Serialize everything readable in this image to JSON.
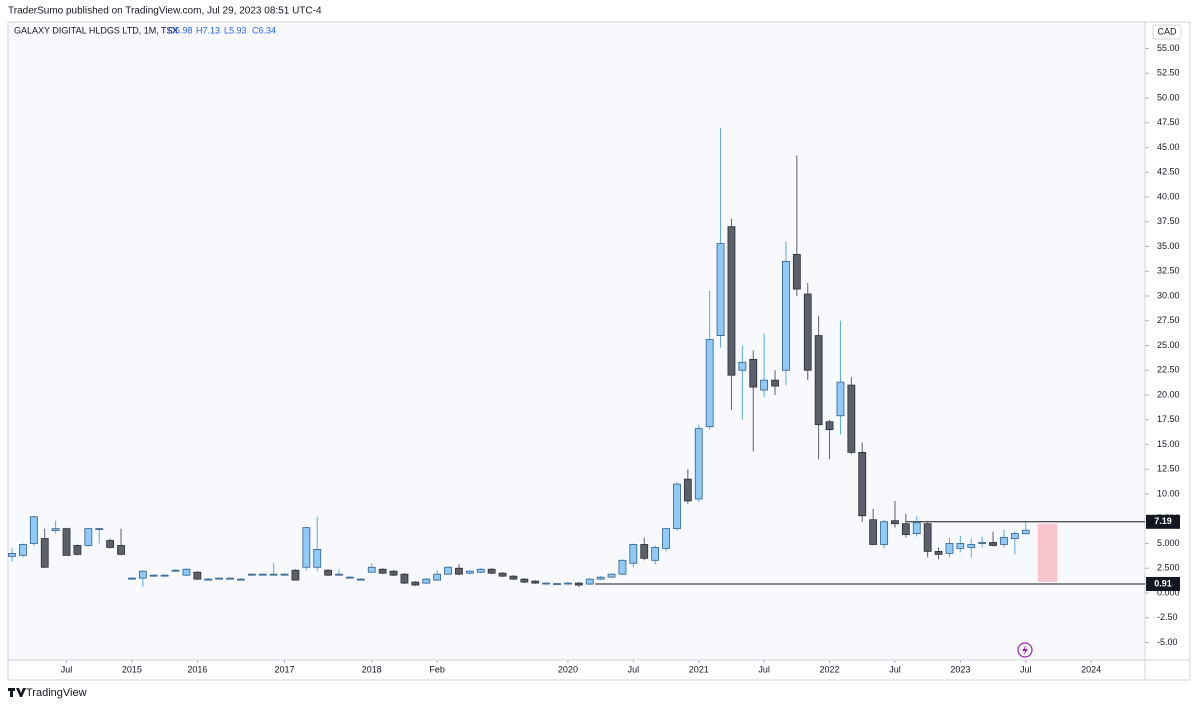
{
  "header": {
    "publisher": "TraderSumo published on TradingView.com, Jul 29, 2023 08:51 UTC-4"
  },
  "footer": {
    "brand": "TradingView"
  },
  "chart_data": {
    "type": "candlestick",
    "legend": {
      "symbol": "GALAXY DIGITAL HLDGS LTD, 1M, TSX",
      "ohlc": [
        "O5.98",
        "H7.13",
        "L5.93",
        "C6.34"
      ]
    },
    "currency": "CAD",
    "open": [
      3.7,
      3.8,
      5.0,
      5.5,
      6.3,
      6.5,
      4.8,
      4.8,
      6.4,
      5.3,
      4.8,
      1.5,
      1.5,
      1.8,
      1.8,
      2.3,
      1.8,
      2.1,
      1.4,
      1.5,
      1.5,
      1.4,
      1.9,
      1.9,
      1.9,
      1.9,
      2.3,
      2.6,
      2.6,
      2.3,
      1.9,
      1.6,
      1.4,
      2.1,
      2.4,
      2.2,
      1.9,
      1.1,
      1.0,
      1.3,
      1.9,
      2.5,
      2.0,
      2.1,
      2.4,
      2.0,
      1.7,
      1.4,
      1.2,
      1.0,
      0.95,
      1.0,
      1.0,
      0.9,
      1.4,
      1.6,
      1.9,
      3.0,
      4.9,
      3.3,
      4.5,
      6.5,
      11.5,
      9.5,
      16.8,
      26.0,
      37.0,
      22.5,
      23.6,
      20.5,
      21.5,
      22.5,
      34.2,
      30.2,
      26.0,
      17.3,
      17.9,
      21.0,
      14.2,
      7.4,
      4.9,
      7.3,
      7.0,
      6.0,
      7.0,
      4.2,
      4.0,
      4.5,
      4.6,
      5.0,
      5.1,
      4.9,
      5.5,
      5.98
    ],
    "high": [
      4.5,
      5.0,
      7.8,
      6.5,
      7.3,
      6.6,
      4.9,
      6.6,
      6.6,
      5.5,
      6.5,
      1.6,
      2.3,
      1.9,
      1.9,
      2.4,
      2.5,
      2.2,
      1.5,
      1.6,
      1.6,
      1.5,
      2.0,
      2.0,
      3.0,
      2.0,
      2.4,
      6.7,
      7.7,
      2.4,
      2.4,
      1.7,
      1.5,
      3.0,
      2.5,
      2.3,
      2.0,
      1.2,
      1.5,
      2.3,
      2.7,
      2.9,
      2.3,
      2.5,
      2.5,
      2.1,
      1.8,
      1.5,
      1.3,
      1.1,
      1.0,
      1.1,
      1.1,
      1.5,
      1.7,
      2.0,
      3.4,
      5.0,
      5.6,
      4.8,
      6.6,
      11.2,
      12.5,
      17.0,
      30.5,
      47.0,
      37.8,
      25.0,
      24.5,
      26.2,
      22.5,
      35.5,
      44.2,
      31.3,
      28.0,
      17.5,
      27.5,
      21.8,
      15.2,
      8.5,
      7.4,
      9.3,
      8.0,
      7.8,
      7.3,
      4.6,
      5.6,
      5.8,
      5.5,
      5.7,
      6.2,
      6.4,
      6.2,
      7.13
    ],
    "low": [
      3.2,
      3.6,
      4.8,
      2.5,
      6.0,
      3.8,
      3.8,
      4.7,
      5.0,
      4.5,
      3.8,
      1.4,
      0.6,
      1.7,
      1.7,
      2.2,
      1.7,
      1.3,
      1.3,
      1.4,
      1.4,
      1.3,
      1.8,
      1.8,
      1.8,
      1.8,
      1.3,
      2.3,
      2.2,
      1.7,
      1.8,
      1.5,
      1.3,
      2.0,
      1.9,
      1.7,
      0.9,
      0.7,
      0.9,
      1.2,
      1.8,
      1.8,
      1.9,
      2.0,
      1.9,
      1.6,
      1.3,
      1.0,
      0.9,
      0.9,
      0.9,
      0.9,
      0.6,
      0.8,
      1.3,
      1.5,
      1.8,
      2.6,
      3.3,
      2.9,
      4.2,
      6.3,
      9.0,
      9.2,
      16.5,
      24.8,
      18.5,
      17.5,
      14.3,
      19.8,
      20.0,
      21.0,
      30.0,
      21.5,
      13.5,
      13.5,
      16.0,
      14.0,
      7.2,
      4.8,
      4.5,
      6.6,
      5.6,
      5.7,
      3.6,
      3.4,
      3.6,
      4.1,
      3.6,
      4.6,
      4.7,
      4.6,
      3.9,
      5.93
    ],
    "close": [
      4.0,
      4.9,
      7.7,
      2.6,
      6.5,
      3.8,
      3.9,
      6.5,
      6.5,
      4.6,
      3.9,
      1.5,
      2.2,
      1.8,
      1.8,
      2.3,
      2.4,
      1.4,
      1.4,
      1.5,
      1.5,
      1.4,
      1.9,
      1.9,
      1.9,
      1.9,
      1.3,
      6.6,
      4.4,
      1.8,
      1.9,
      1.6,
      1.4,
      2.6,
      2.0,
      1.8,
      1.0,
      0.8,
      1.4,
      1.9,
      2.6,
      1.9,
      2.2,
      2.4,
      2.0,
      1.7,
      1.4,
      1.1,
      1.0,
      1.0,
      0.95,
      1.0,
      0.8,
      1.4,
      1.6,
      1.9,
      3.3,
      4.9,
      3.5,
      4.6,
      6.5,
      11.0,
      9.3,
      16.6,
      25.6,
      35.3,
      22.0,
      23.3,
      20.8,
      21.5,
      20.9,
      33.5,
      30.7,
      22.5,
      17.0,
      16.5,
      21.3,
      14.2,
      7.8,
      4.9,
      7.2,
      7.0,
      5.9,
      7.1,
      4.2,
      3.9,
      5.0,
      5.0,
      4.9,
      5.1,
      4.8,
      5.6,
      6.0,
      6.34
    ],
    "bull_color": "#90caf9",
    "bull_border": "#2f5f8a",
    "bear_color": "#5d606b",
    "bear_border": "#2a2e39",
    "xlim": [
      -0.37,
      103.94
    ],
    "xticks": [
      {
        "value": 5,
        "label": "Jul"
      },
      {
        "value": 11,
        "label": "2015"
      },
      {
        "value": 17,
        "label": "2016"
      },
      {
        "value": 25,
        "label": "2017"
      },
      {
        "value": 33,
        "label": "2018"
      },
      {
        "value": 39,
        "label": "Feb"
      },
      {
        "value": 51,
        "label": "2020"
      },
      {
        "value": 57,
        "label": "Jul"
      },
      {
        "value": 63,
        "label": "2021"
      },
      {
        "value": 69,
        "label": "Jul"
      },
      {
        "value": 75,
        "label": "2022"
      },
      {
        "value": 81,
        "label": "Jul"
      },
      {
        "value": 87,
        "label": "2023"
      },
      {
        "value": 93,
        "label": "Jul"
      },
      {
        "value": 99,
        "label": "2024"
      }
    ],
    "ylim": [
      -6.77,
      56.87
    ],
    "yticks": [
      {
        "value": 55,
        "label": "55.00"
      },
      {
        "value": 52.5,
        "label": "52.50"
      },
      {
        "value": 50,
        "label": "50.00"
      },
      {
        "value": 47.5,
        "label": "47.50"
      },
      {
        "value": 45,
        "label": "45.00"
      },
      {
        "value": 42.5,
        "label": "42.50"
      },
      {
        "value": 40,
        "label": "40.00"
      },
      {
        "value": 37.5,
        "label": "37.50"
      },
      {
        "value": 35,
        "label": "35.00"
      },
      {
        "value": 32.5,
        "label": "32.50"
      },
      {
        "value": 30,
        "label": "30.00"
      },
      {
        "value": 27.5,
        "label": "27.50"
      },
      {
        "value": 25,
        "label": "25.00"
      },
      {
        "value": 22.5,
        "label": "22.50"
      },
      {
        "value": 20,
        "label": "20.00"
      },
      {
        "value": 17.5,
        "label": "17.50"
      },
      {
        "value": 15,
        "label": "15.00"
      },
      {
        "value": 12.5,
        "label": "12.50"
      },
      {
        "value": 10,
        "label": "10.00"
      },
      {
        "value": 7.5,
        "label": "7.500"
      },
      {
        "value": 5,
        "label": "5.000"
      },
      {
        "value": 2.5,
        "label": "2.500"
      },
      {
        "value": 0,
        "label": "0.000"
      },
      {
        "value": -2.5,
        "label": "-2.50"
      },
      {
        "value": -5,
        "label": "-5.00"
      }
    ],
    "hlines": [
      {
        "value": 7.19,
        "x_start": 82
      },
      {
        "value": 0.91,
        "x_start": 53.5
      }
    ],
    "range_box": {
      "x": [
        94.1,
        95.9
      ],
      "y": [
        1.1,
        7.0
      ],
      "color": "#f8c6cc"
    }
  }
}
